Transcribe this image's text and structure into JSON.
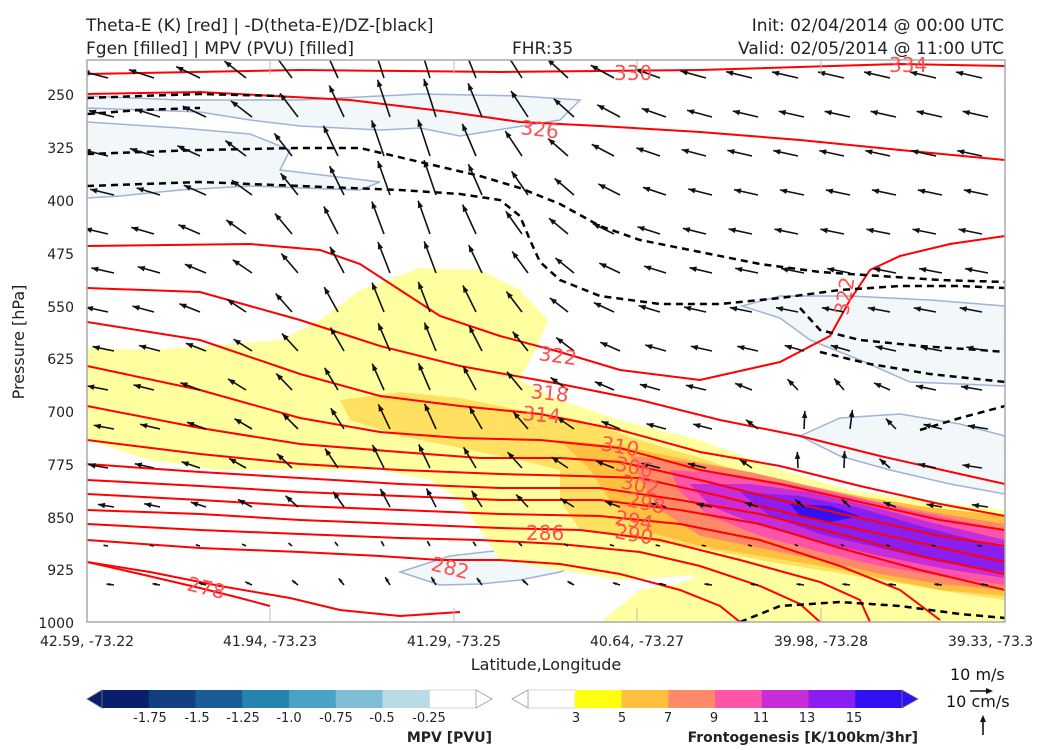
{
  "header": {
    "line1_left": "Theta-E (K) [red] | -D(theta-E)/DZ-[black]",
    "line2_left": "Fgen [filled] | MPV (PVU) [filled]",
    "fhr": "FHR:35",
    "init": "Init: 02/04/2014 @ 00:00 UTC",
    "valid": "Valid: 02/05/2014 @ 11:00 UTC"
  },
  "chart_data": {
    "type": "cross-section",
    "xlabel": "Latitude,Longitude",
    "ylabel": "Pressure [hPa]",
    "x_ticks": [
      "42.59, -73.22",
      "41.94, -73.23",
      "41.29, -73.25",
      "40.64, -73.27",
      "39.98, -73.28",
      "39.33, -73.3"
    ],
    "y_ticks": [
      250,
      325,
      400,
      475,
      550,
      625,
      700,
      775,
      850,
      925,
      1000
    ],
    "ylim": [
      200,
      1000
    ],
    "theta_e_labels": [
      "330",
      "334",
      "326",
      "322",
      "322",
      "318",
      "314",
      "310",
      "306",
      "302",
      "298",
      "294",
      "290",
      "286",
      "282",
      "278"
    ],
    "theta_e_color": "#ff0000",
    "stability_color": "#000000",
    "mpv_colorbar": {
      "title": "MPV [PVU]",
      "ticks": [
        "-1.75",
        "-1.5",
        "-1.25",
        "-1.0",
        "-0.75",
        "-0.5",
        "-0.25"
      ],
      "colors": [
        "#0a1e6e",
        "#123f80",
        "#1a5c96",
        "#2784ae",
        "#4aa3c6",
        "#7fbdd6",
        "#b9dbe6",
        "#ffffff"
      ]
    },
    "fgen_colorbar": {
      "title": "Frontogenesis [K/100km/3hr]",
      "ticks": [
        "3",
        "5",
        "7",
        "9",
        "11",
        "13",
        "15"
      ],
      "colors": [
        "#ffffff",
        "#ffff10",
        "#ffc040",
        "#ff8a6a",
        "#ff55a8",
        "#c82ed8",
        "#8a1df0",
        "#3010f5"
      ]
    },
    "reference_vectors": [
      "10 m/s",
      "10 cm/s"
    ]
  }
}
